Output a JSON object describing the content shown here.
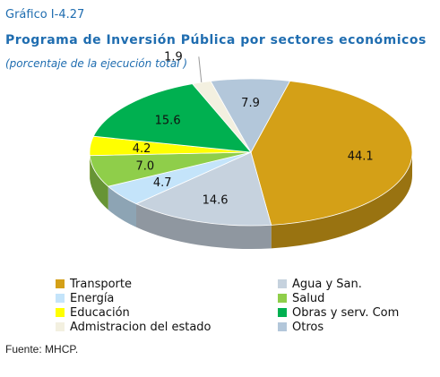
{
  "figure": {
    "label": "Gráfico I-4.27",
    "title": "Programa de Inversión Pública por sectores económicos",
    "subtitle": "(porcentaje de la ejecución total )",
    "source": "Fuente: MHCP."
  },
  "chart_data": {
    "type": "pie",
    "title": "Programa de Inversión Pública por sectores económicos",
    "subtitle": "(porcentaje de la ejecución total )",
    "legend_position": "bottom",
    "series": [
      {
        "name": "Transporte",
        "value": 44.1,
        "label": "44.1",
        "color": "#d4a017"
      },
      {
        "name": "Agua y San.",
        "value": 14.6,
        "label": "14.6",
        "color": "#c6d2de"
      },
      {
        "name": "Energía",
        "value": 4.7,
        "label": "4.7",
        "color": "#c4e4fa"
      },
      {
        "name": "Salud",
        "value": 7.0,
        "label": "7.0",
        "color": "#8fce4a"
      },
      {
        "name": "Educación",
        "value": 4.2,
        "label": "4.2",
        "color": "#ffff00"
      },
      {
        "name": "Obras y serv. Com",
        "value": 15.6,
        "label": "15.6",
        "color": "#00b050"
      },
      {
        "name": "Admistracion del estado",
        "value": 1.9,
        "label": "1.9",
        "color": "#f3f0e0"
      },
      {
        "name": "Otros",
        "value": 7.9,
        "label": "7.9",
        "color": "#b3c7da"
      }
    ]
  }
}
